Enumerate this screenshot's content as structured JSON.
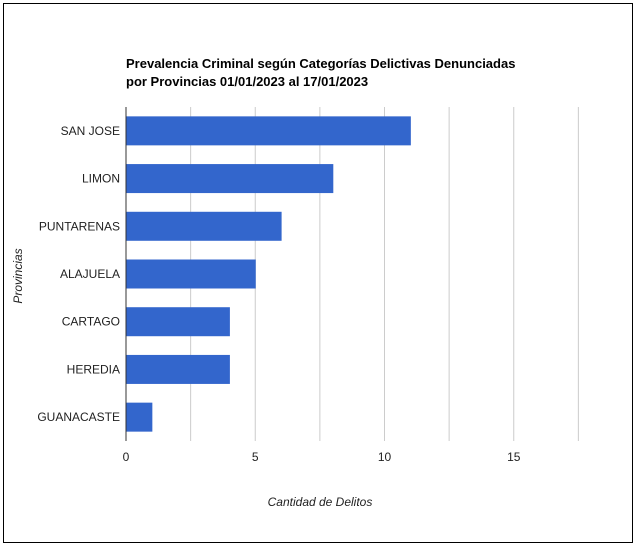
{
  "chart_data": {
    "type": "bar",
    "orientation": "horizontal",
    "title": "Prevalencia Criminal según Categorías Delictivas Denunciadas",
    "subtitle": "por Provincias 01/01/2023 al 17/01/2023",
    "xlabel": "Cantidad de Delitos",
    "ylabel": "Provincias",
    "categories": [
      "SAN JOSE",
      "LIMON",
      "PUNTARENAS",
      "ALAJUELA",
      "CARTAGO",
      "HEREDIA",
      "GUANACASTE"
    ],
    "values": [
      11,
      8,
      6,
      5,
      4,
      4,
      1
    ],
    "xlim": [
      0,
      15
    ],
    "xticks": [
      "0",
      "5",
      "10",
      "15"
    ],
    "grid": true,
    "bar_color": "#3366cc",
    "grid_color": "#cccccc"
  }
}
